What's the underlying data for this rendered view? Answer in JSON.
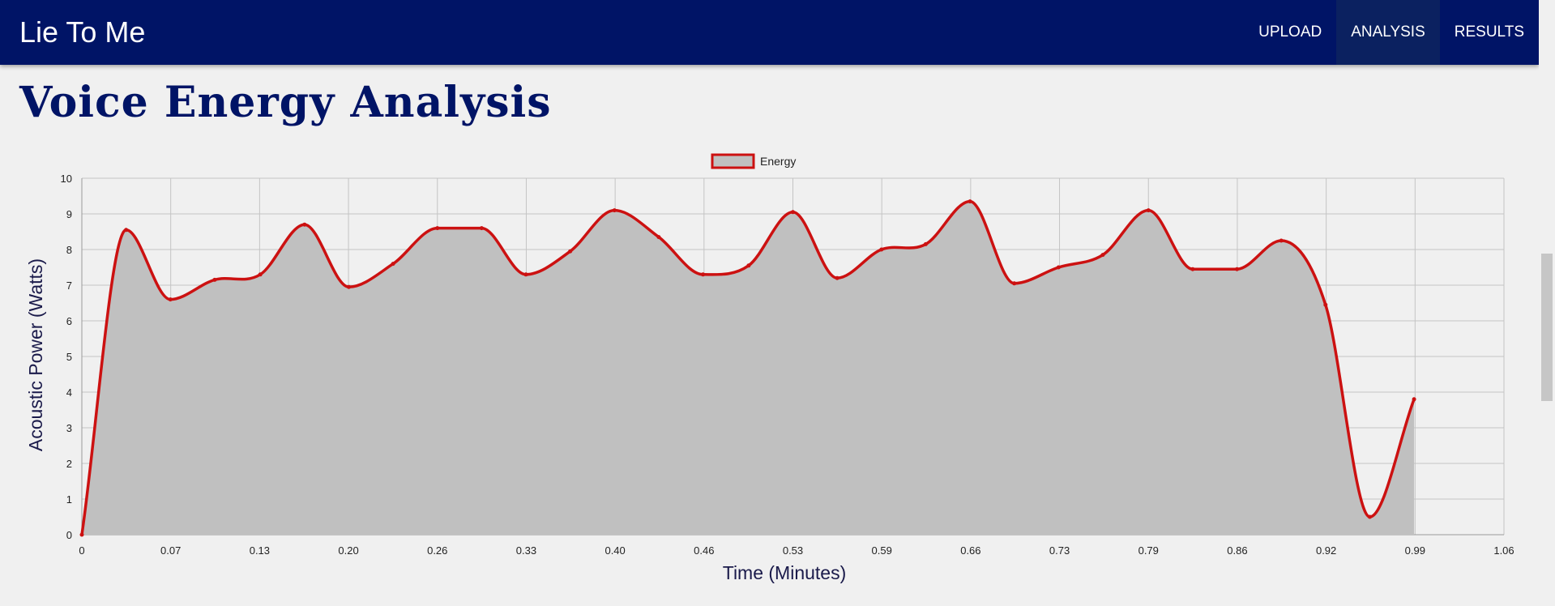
{
  "navbar": {
    "brand": "Lie To Me",
    "items": [
      {
        "label": "UPLOAD",
        "active": false
      },
      {
        "label": "ANALYSIS",
        "active": true
      },
      {
        "label": "RESULTS",
        "active": false
      }
    ],
    "background": "#001466"
  },
  "page": {
    "title": "Voice Energy Analysis"
  },
  "chart_data": {
    "type": "area",
    "title": "",
    "xlabel": "Time (Minutes)",
    "ylabel": "Acoustic Power (Watts)",
    "xlim": [
      0,
      1.06
    ],
    "ylim": [
      0,
      10
    ],
    "x_tick_labels": [
      "0",
      "0.07",
      "0.13",
      "0.20",
      "0.26",
      "0.33",
      "0.40",
      "0.46",
      "0.53",
      "0.59",
      "0.66",
      "0.73",
      "0.79",
      "0.86",
      "0.92",
      "0.99",
      "1.06"
    ],
    "y_ticks": [
      0,
      1,
      2,
      3,
      4,
      5,
      6,
      7,
      8,
      9,
      10
    ],
    "grid": true,
    "legend_position": "top-center",
    "line_color": "#cc1111",
    "fill_color": "#c0c0c0",
    "series": [
      {
        "name": "Energy",
        "x": [
          0,
          0.033,
          0.066,
          0.099,
          0.133,
          0.166,
          0.199,
          0.232,
          0.265,
          0.298,
          0.331,
          0.364,
          0.397,
          0.43,
          0.463,
          0.497,
          0.53,
          0.563,
          0.596,
          0.629,
          0.662,
          0.695,
          0.728,
          0.761,
          0.795,
          0.828,
          0.861,
          0.894,
          0.927,
          0.96,
          0.993
        ],
        "values": [
          0,
          8.55,
          6.6,
          7.15,
          7.3,
          8.7,
          6.95,
          7.6,
          8.6,
          8.6,
          7.3,
          7.95,
          9.1,
          8.35,
          7.3,
          7.55,
          9.05,
          7.2,
          8.0,
          8.15,
          9.35,
          7.05,
          7.5,
          7.85,
          9.1,
          7.45,
          7.45,
          8.25,
          6.45,
          0.5,
          3.8
        ]
      }
    ]
  }
}
